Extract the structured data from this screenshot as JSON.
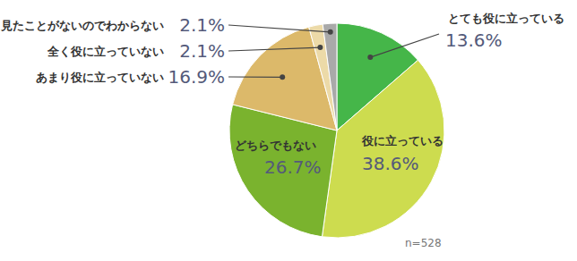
{
  "chart_data": {
    "type": "pie",
    "categories": [
      "とても役に立っている",
      "役に立っている",
      "どちらでもない",
      "あまり役に立っていない",
      "全く役に立っていない",
      "見たことがないのでわからない"
    ],
    "values": [
      13.6,
      38.6,
      26.7,
      16.9,
      2.1,
      2.1
    ],
    "value_labels": [
      "13.6%",
      "38.6%",
      "26.7%",
      "16.9%",
      "2.1%",
      "2.1%"
    ],
    "colors": [
      "#45b649",
      "#cddc4f",
      "#7ab32e",
      "#dcb96a",
      "#ecdaa8",
      "#a9a9a9"
    ],
    "data_labels": true,
    "annotation": "n=528"
  }
}
